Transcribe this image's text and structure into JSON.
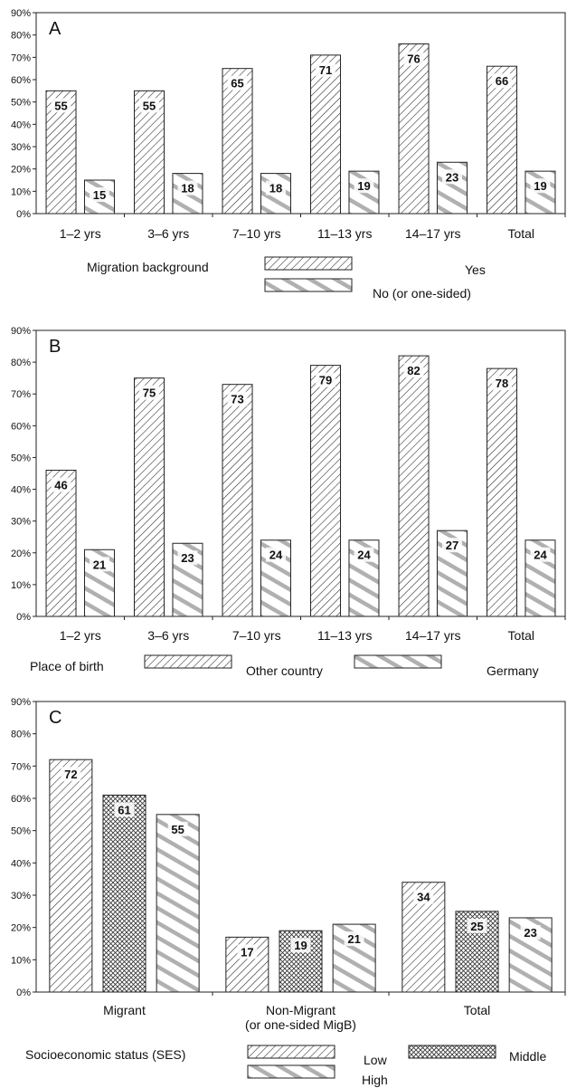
{
  "chart_data": [
    {
      "type": "bar",
      "title": "A",
      "categories": [
        "1–2 yrs",
        "3–6 yrs",
        "7–10 yrs",
        "11–13 yrs",
        "14–17 yrs",
        "Total"
      ],
      "series": [
        {
          "name": "Yes",
          "pattern": "dense-diagonal",
          "values": [
            55,
            55,
            65,
            71,
            76,
            66
          ]
        },
        {
          "name": "No (or one-sided)",
          "pattern": "wide-diagonal",
          "values": [
            15,
            18,
            18,
            19,
            23,
            19
          ]
        }
      ],
      "ylim": [
        0,
        90
      ],
      "yticks": [
        "0%",
        "10%",
        "20%",
        "30%",
        "40%",
        "50%",
        "60%",
        "70%",
        "80%",
        "90%"
      ],
      "legend_title": "Migration background",
      "grid": false
    },
    {
      "type": "bar",
      "title": "B",
      "categories": [
        "1–2 yrs",
        "3–6 yrs",
        "7–10 yrs",
        "11–13 yrs",
        "14–17 yrs",
        "Total"
      ],
      "series": [
        {
          "name": "Other country",
          "pattern": "dense-diagonal",
          "values": [
            46,
            75,
            73,
            79,
            82,
            78
          ]
        },
        {
          "name": "Germany",
          "pattern": "wide-diagonal",
          "values": [
            21,
            23,
            24,
            24,
            27,
            24
          ]
        }
      ],
      "ylim": [
        0,
        90
      ],
      "yticks": [
        "0%",
        "10%",
        "20%",
        "30%",
        "40%",
        "50%",
        "60%",
        "70%",
        "80%",
        "90%"
      ],
      "legend_title": "Place of birth",
      "grid": false
    },
    {
      "type": "bar",
      "title": "C",
      "categories": [
        "Migrant",
        "Non-Migrant\n(or one-sided MigB)",
        "Total"
      ],
      "series": [
        {
          "name": "Low",
          "pattern": "dense-diagonal",
          "values": [
            72,
            17,
            34
          ]
        },
        {
          "name": "Middle",
          "pattern": "crosshatch",
          "values": [
            61,
            19,
            25
          ]
        },
        {
          "name": "High",
          "pattern": "wide-diagonal",
          "values": [
            55,
            21,
            23
          ]
        }
      ],
      "ylim": [
        0,
        90
      ],
      "yticks": [
        "0%",
        "10%",
        "20%",
        "30%",
        "40%",
        "50%",
        "60%",
        "70%",
        "80%",
        "90%"
      ],
      "legend_title": "Socioeconomic status (SES)",
      "grid": false
    }
  ],
  "colors": {
    "ink": "#222222",
    "background": "#ffffff",
    "wide_stripe": "#b0b0b0"
  }
}
